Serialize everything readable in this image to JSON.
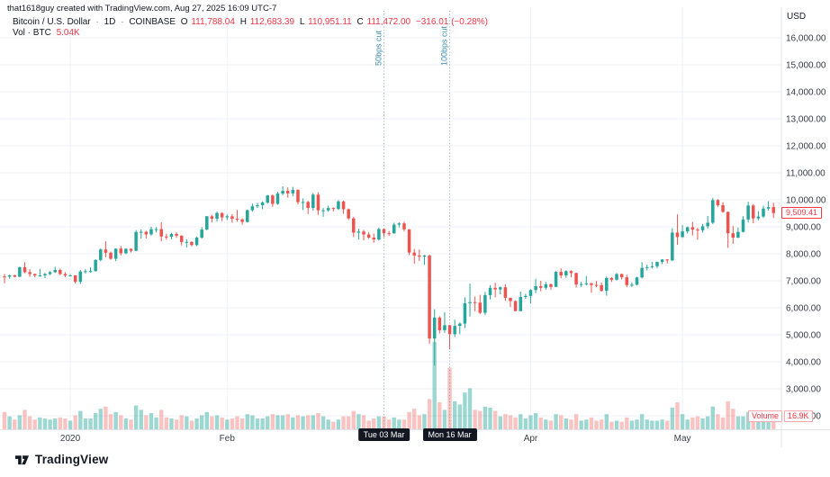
{
  "attribution": "that1618guy created with TradingView.com, Aug 27, 2025 16:09 UTC-7",
  "header": {
    "symbol": "Bitcoin / U.S. Dollar",
    "sep": "·",
    "interval": "1D",
    "exchange": "COINBASE",
    "ohlc": {
      "o_label": "O",
      "o": "111,788.04",
      "h_label": "H",
      "h": "112,683.39",
      "l_label": "L",
      "l": "110,951.11",
      "c_label": "C",
      "c": "111,472.00",
      "change": "−316.01 (−0.28%)"
    },
    "vol_label": "Vol · BTC",
    "vol_value": "5.04K"
  },
  "axes": {
    "currency": "USD",
    "price_ticks": [
      {
        "value": 16000,
        "label": "16,000.00"
      },
      {
        "value": 15000,
        "label": "15,000.00"
      },
      {
        "value": 14000,
        "label": "14,000.00"
      },
      {
        "value": 13000,
        "label": "13,000.00"
      },
      {
        "value": 12000,
        "label": "12,000.00"
      },
      {
        "value": 11000,
        "label": "11,000.00"
      },
      {
        "value": 10000,
        "label": "10,000.00"
      },
      {
        "value": 9000,
        "label": "9,000.00"
      },
      {
        "value": 8000,
        "label": "8,000.00"
      },
      {
        "value": 7000,
        "label": "7,000.00"
      },
      {
        "value": 6000,
        "label": "6,000.00"
      },
      {
        "value": 5000,
        "label": "5,000.00"
      },
      {
        "value": 4000,
        "label": "4,000.00"
      },
      {
        "value": 3000,
        "label": "3,000.00"
      },
      {
        "value": 2000,
        "label": "2,000.00"
      }
    ],
    "time_labels": [
      {
        "label": "2020",
        "index": 13
      },
      {
        "label": "Feb",
        "index": 44
      },
      {
        "label": "Apr",
        "index": 104
      },
      {
        "label": "May",
        "index": 134
      }
    ],
    "date_tags": [
      {
        "label": "Tue 03 Mar",
        "index": 75
      },
      {
        "label": "Mon 16 Mar",
        "index": 88
      }
    ]
  },
  "annotations": [
    {
      "label": "50bps cut",
      "index": 75
    },
    {
      "label": "100bps cut",
      "index": 88
    }
  ],
  "price_label": {
    "text": "9,509.41",
    "value": 9509.41
  },
  "volume_tag": {
    "name": "Volume",
    "value": "16.9K"
  },
  "logo_text": "TradingView",
  "colors": {
    "up": "#26a69a",
    "down": "#ef5350",
    "up_vol": "rgba(38,166,154,0.45)",
    "down_vol": "rgba(239,83,80,0.35)",
    "accent_red": "#f23645",
    "annotation": "#3e8ba8",
    "grid": "#eef1f7",
    "axis_border": "#e0e3eb",
    "text": "#131722",
    "axis_text": "#363a45",
    "tag_bg": "#131722"
  },
  "chart_data": {
    "type": "candlestick",
    "title": "Bitcoin / U.S. Dollar, 1D, COINBASE",
    "ylabel": "USD",
    "ylim": [
      2000,
      16000
    ],
    "grid": true,
    "volume_unit": "K BTC",
    "columns": [
      "date",
      "open",
      "high",
      "low",
      "close",
      "volume_k"
    ],
    "series": [
      [
        "2019-12-19",
        7160,
        7250,
        6910,
        7150,
        16
      ],
      [
        "2019-12-20",
        7150,
        7230,
        7080,
        7200,
        12
      ],
      [
        "2019-12-21",
        7200,
        7230,
        7120,
        7150,
        9
      ],
      [
        "2019-12-22",
        7150,
        7525,
        7130,
        7500,
        13
      ],
      [
        "2019-12-23",
        7500,
        7690,
        7280,
        7320,
        18
      ],
      [
        "2019-12-24",
        7320,
        7430,
        7150,
        7250,
        12
      ],
      [
        "2019-12-25",
        7250,
        7270,
        7130,
        7200,
        9
      ],
      [
        "2019-12-26",
        7200,
        7440,
        7150,
        7200,
        11
      ],
      [
        "2019-12-27",
        7200,
        7290,
        7100,
        7250,
        10
      ],
      [
        "2019-12-28",
        7250,
        7360,
        7210,
        7320,
        9
      ],
      [
        "2019-12-29",
        7320,
        7520,
        7290,
        7400,
        10
      ],
      [
        "2019-12-30",
        7400,
        7450,
        7210,
        7250,
        11
      ],
      [
        "2019-12-31",
        7250,
        7320,
        7130,
        7200,
        10
      ],
      [
        "2020-01-01",
        7200,
        7250,
        7160,
        7200,
        8
      ],
      [
        "2020-01-02",
        7200,
        7210,
        6900,
        6965,
        13
      ],
      [
        "2020-01-03",
        6965,
        7400,
        6880,
        7345,
        17
      ],
      [
        "2020-01-04",
        7345,
        7430,
        7270,
        7355,
        10
      ],
      [
        "2020-01-05",
        7355,
        7500,
        7300,
        7360,
        10
      ],
      [
        "2020-01-06",
        7360,
        7800,
        7340,
        7770,
        15
      ],
      [
        "2020-01-07",
        7770,
        8200,
        7720,
        8160,
        19
      ],
      [
        "2020-01-08",
        8160,
        8460,
        7870,
        8040,
        21
      ],
      [
        "2020-01-09",
        8040,
        8080,
        7780,
        7815,
        14
      ],
      [
        "2020-01-10",
        7815,
        8200,
        7730,
        8190,
        16
      ],
      [
        "2020-01-11",
        8190,
        8290,
        7940,
        8020,
        13
      ],
      [
        "2020-01-12",
        8020,
        8200,
        7980,
        8185,
        10
      ],
      [
        "2020-01-13",
        8185,
        8195,
        8050,
        8110,
        9
      ],
      [
        "2020-01-14",
        8110,
        8880,
        8100,
        8810,
        22
      ],
      [
        "2020-01-15",
        8810,
        8900,
        8560,
        8815,
        18
      ],
      [
        "2020-01-16",
        8815,
        8850,
        8570,
        8720,
        13
      ],
      [
        "2020-01-17",
        8720,
        9000,
        8670,
        8910,
        15
      ],
      [
        "2020-01-18",
        8910,
        8990,
        8790,
        8915,
        11
      ],
      [
        "2020-01-19",
        8915,
        9170,
        8460,
        8640,
        18
      ],
      [
        "2020-01-20",
        8640,
        8740,
        8520,
        8630,
        11
      ],
      [
        "2020-01-21",
        8630,
        8780,
        8540,
        8735,
        10
      ],
      [
        "2020-01-22",
        8735,
        8800,
        8590,
        8670,
        9
      ],
      [
        "2020-01-23",
        8670,
        8690,
        8310,
        8435,
        13
      ],
      [
        "2020-01-24",
        8435,
        8540,
        8230,
        8440,
        12
      ],
      [
        "2020-01-25",
        8440,
        8460,
        8270,
        8325,
        8
      ],
      [
        "2020-01-26",
        8325,
        8640,
        8280,
        8600,
        10
      ],
      [
        "2020-01-27",
        8600,
        8990,
        8560,
        8900,
        13
      ],
      [
        "2020-01-28",
        8900,
        9400,
        8870,
        9390,
        16
      ],
      [
        "2020-01-29",
        9390,
        9440,
        9160,
        9300,
        12
      ],
      [
        "2020-01-30",
        9300,
        9570,
        9190,
        9510,
        13
      ],
      [
        "2020-01-31",
        9510,
        9530,
        9210,
        9350,
        11
      ],
      [
        "2020-02-01",
        9350,
        9460,
        9250,
        9390,
        9
      ],
      [
        "2020-02-02",
        9390,
        9470,
        9150,
        9300,
        10
      ],
      [
        "2020-02-03",
        9300,
        9620,
        9190,
        9270,
        12
      ],
      [
        "2020-02-04",
        9270,
        9320,
        9080,
        9180,
        10
      ],
      [
        "2020-02-05",
        9180,
        9640,
        9160,
        9615,
        14
      ],
      [
        "2020-02-06",
        9615,
        9860,
        9560,
        9760,
        13
      ],
      [
        "2020-02-07",
        9760,
        9890,
        9700,
        9800,
        10
      ],
      [
        "2020-02-08",
        9800,
        9945,
        9650,
        9900,
        10
      ],
      [
        "2020-02-09",
        9900,
        10180,
        9850,
        10160,
        12
      ],
      [
        "2020-02-10",
        10160,
        10200,
        9740,
        9850,
        14
      ],
      [
        "2020-02-11",
        9850,
        10290,
        9820,
        10230,
        13
      ],
      [
        "2020-02-12",
        10230,
        10500,
        10170,
        10330,
        13
      ],
      [
        "2020-02-13",
        10330,
        10460,
        10080,
        10240,
        14
      ],
      [
        "2020-02-14",
        10240,
        10480,
        10130,
        10365,
        11
      ],
      [
        "2020-02-15",
        10365,
        10390,
        9830,
        9915,
        13
      ],
      [
        "2020-02-16",
        9915,
        10050,
        9620,
        9920,
        12
      ],
      [
        "2020-02-17",
        9920,
        9960,
        9470,
        9700,
        13
      ],
      [
        "2020-02-18",
        9700,
        10250,
        9600,
        10190,
        13
      ],
      [
        "2020-02-19",
        10190,
        10280,
        9440,
        9610,
        15
      ],
      [
        "2020-02-20",
        9610,
        9700,
        9370,
        9610,
        12
      ],
      [
        "2020-02-21",
        9610,
        9780,
        9560,
        9695,
        9
      ],
      [
        "2020-02-22",
        9695,
        9720,
        9570,
        9660,
        7
      ],
      [
        "2020-02-23",
        9660,
        9990,
        9620,
        9940,
        9
      ],
      [
        "2020-02-24",
        9940,
        9970,
        9480,
        9650,
        12
      ],
      [
        "2020-02-25",
        9650,
        9680,
        9250,
        9310,
        12
      ],
      [
        "2020-02-26",
        9310,
        9370,
        8620,
        8785,
        17
      ],
      [
        "2020-02-27",
        8785,
        8930,
        8530,
        8825,
        14
      ],
      [
        "2020-02-28",
        8825,
        8890,
        8500,
        8715,
        13
      ],
      [
        "2020-02-29",
        8715,
        8790,
        8560,
        8600,
        8
      ],
      [
        "2020-03-01",
        8600,
        8750,
        8410,
        8530,
        10
      ],
      [
        "2020-03-02",
        8530,
        8970,
        8490,
        8915,
        12
      ],
      [
        "2020-03-03",
        8915,
        8930,
        8620,
        8760,
        12
      ],
      [
        "2020-03-04",
        8760,
        8850,
        8660,
        8755,
        9
      ],
      [
        "2020-03-05",
        8755,
        9150,
        8745,
        9080,
        11
      ],
      [
        "2020-03-06",
        9080,
        9170,
        8980,
        9125,
        9
      ],
      [
        "2020-03-07",
        9125,
        9190,
        8830,
        8905,
        9
      ],
      [
        "2020-03-08",
        8905,
        8910,
        7950,
        8045,
        16
      ],
      [
        "2020-03-09",
        8045,
        8180,
        7630,
        7935,
        19
      ],
      [
        "2020-03-10",
        7935,
        8155,
        7730,
        7895,
        13
      ],
      [
        "2020-03-11",
        7895,
        7960,
        7590,
        7935,
        14
      ],
      [
        "2020-03-12",
        7935,
        7970,
        4670,
        4860,
        28
      ],
      [
        "2020-03-13",
        4860,
        5950,
        3860,
        5640,
        81
      ],
      [
        "2020-03-14",
        5640,
        5690,
        5050,
        5170,
        25
      ],
      [
        "2020-03-15",
        5170,
        5840,
        5070,
        5355,
        18
      ],
      [
        "2020-03-16",
        5355,
        5370,
        4455,
        5025,
        57
      ],
      [
        "2020-03-17",
        5025,
        5560,
        4920,
        5330,
        26
      ],
      [
        "2020-03-18",
        5330,
        5460,
        5020,
        5415,
        23
      ],
      [
        "2020-03-19",
        5415,
        6390,
        5250,
        6170,
        34
      ],
      [
        "2020-03-20",
        6170,
        6900,
        5680,
        6210,
        38
      ],
      [
        "2020-03-21",
        6210,
        6420,
        5870,
        6190,
        18
      ],
      [
        "2020-03-22",
        6190,
        6480,
        5770,
        5815,
        17
      ],
      [
        "2020-03-23",
        5815,
        6590,
        5740,
        6470,
        21
      ],
      [
        "2020-03-24",
        6470,
        6840,
        6310,
        6740,
        20
      ],
      [
        "2020-03-25",
        6740,
        6930,
        6390,
        6680,
        17
      ],
      [
        "2020-03-26",
        6680,
        6790,
        6500,
        6760,
        12
      ],
      [
        "2020-03-27",
        6760,
        6870,
        6260,
        6370,
        14
      ],
      [
        "2020-03-28",
        6370,
        6370,
        6030,
        6250,
        13
      ],
      [
        "2020-03-29",
        6250,
        6270,
        5870,
        5880,
        11
      ],
      [
        "2020-03-30",
        5880,
        6600,
        5865,
        6400,
        14
      ],
      [
        "2020-03-31",
        6400,
        6520,
        6330,
        6440,
        10
      ],
      [
        "2020-04-01",
        6440,
        6690,
        6160,
        6660,
        13
      ],
      [
        "2020-04-02",
        6660,
        7070,
        6550,
        6800,
        15
      ],
      [
        "2020-04-03",
        6800,
        7000,
        6610,
        6740,
        11
      ],
      [
        "2020-04-04",
        6740,
        6960,
        6670,
        6870,
        9
      ],
      [
        "2020-04-05",
        6870,
        6900,
        6670,
        6775,
        8
      ],
      [
        "2020-04-06",
        6775,
        7360,
        6770,
        7330,
        14
      ],
      [
        "2020-04-07",
        7330,
        7460,
        7090,
        7200,
        13
      ],
      [
        "2020-04-08",
        7200,
        7390,
        7110,
        7360,
        10
      ],
      [
        "2020-04-09",
        7360,
        7390,
        7130,
        7290,
        9
      ],
      [
        "2020-04-10",
        7290,
        7300,
        6750,
        6865,
        14
      ],
      [
        "2020-04-11",
        6865,
        6960,
        6770,
        6880,
        8
      ],
      [
        "2020-04-12",
        6880,
        7180,
        6830,
        6910,
        9
      ],
      [
        "2020-04-13",
        6910,
        6920,
        6560,
        6845,
        11
      ],
      [
        "2020-04-14",
        6845,
        6990,
        6770,
        6840,
        8
      ],
      [
        "2020-04-15",
        6840,
        6930,
        6600,
        6630,
        9
      ],
      [
        "2020-04-16",
        6630,
        7160,
        6450,
        7100,
        14
      ],
      [
        "2020-04-17",
        7100,
        7140,
        6960,
        7040,
        7
      ],
      [
        "2020-04-18",
        7040,
        7290,
        7010,
        7250,
        8
      ],
      [
        "2020-04-19",
        7250,
        7270,
        7050,
        7130,
        7
      ],
      [
        "2020-04-20",
        7130,
        7220,
        6760,
        6840,
        11
      ],
      [
        "2020-04-21",
        6840,
        6940,
        6770,
        6855,
        8
      ],
      [
        "2020-04-22",
        6855,
        7150,
        6830,
        7125,
        9
      ],
      [
        "2020-04-23",
        7125,
        7690,
        7080,
        7480,
        14
      ],
      [
        "2020-04-24",
        7480,
        7600,
        7380,
        7505,
        9
      ],
      [
        "2020-04-25",
        7505,
        7700,
        7450,
        7540,
        8
      ],
      [
        "2020-04-26",
        7540,
        7710,
        7460,
        7700,
        8
      ],
      [
        "2020-04-27",
        7700,
        7800,
        7620,
        7790,
        9
      ],
      [
        "2020-04-28",
        7790,
        7800,
        7640,
        7755,
        8
      ],
      [
        "2020-04-29",
        7755,
        8950,
        7730,
        8785,
        20
      ],
      [
        "2020-04-30",
        8785,
        9460,
        8330,
        8620,
        25
      ],
      [
        "2020-05-01",
        8620,
        9060,
        8590,
        8830,
        14
      ],
      [
        "2020-05-02",
        8830,
        9010,
        8750,
        8985,
        9
      ],
      [
        "2020-05-03",
        8985,
        9180,
        8680,
        8895,
        11
      ],
      [
        "2020-05-04",
        8895,
        8960,
        8520,
        8870,
        12
      ],
      [
        "2020-05-05",
        8870,
        9110,
        8790,
        9020,
        10
      ],
      [
        "2020-05-06",
        9020,
        9400,
        8930,
        9150,
        12
      ],
      [
        "2020-05-07",
        9150,
        10070,
        9100,
        9990,
        21
      ],
      [
        "2020-05-08",
        9990,
        10030,
        9740,
        9800,
        14
      ],
      [
        "2020-05-09",
        9800,
        9910,
        9520,
        9550,
        11
      ],
      [
        "2020-05-10",
        9550,
        9570,
        8220,
        8760,
        26
      ],
      [
        "2020-05-11",
        8760,
        9030,
        8370,
        8600,
        19
      ],
      [
        "2020-05-12",
        8600,
        8970,
        8580,
        8810,
        12
      ],
      [
        "2020-05-13",
        8810,
        9390,
        8790,
        9270,
        12
      ],
      [
        "2020-05-14",
        9270,
        9930,
        9160,
        9790,
        16
      ],
      [
        "2020-05-15",
        9790,
        9845,
        9130,
        9310,
        13
      ],
      [
        "2020-05-16",
        9310,
        9580,
        9240,
        9380,
        8
      ],
      [
        "2020-05-17",
        9380,
        9780,
        9330,
        9675,
        9
      ],
      [
        "2020-05-18",
        9675,
        9950,
        9600,
        9730,
        11
      ],
      [
        "2020-05-19",
        9730,
        9890,
        9330,
        9509.41,
        17
      ]
    ]
  }
}
